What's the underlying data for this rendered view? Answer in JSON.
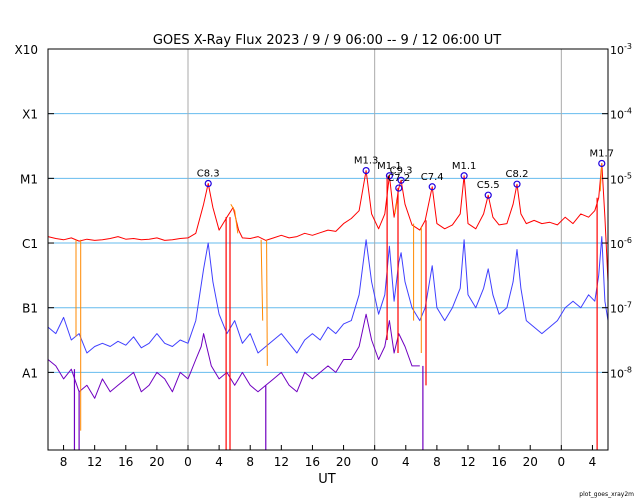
{
  "chart_data": {
    "type": "line",
    "title": "GOES X-Ray Flux   2023 /  9 /  9   06:00 --  9 / 12   06:00   UT",
    "xlabel": "UT",
    "credit": "plot_goes_xray2m",
    "x_ticks": [
      "8",
      "12",
      "16",
      "20",
      "0",
      "4",
      "8",
      "12",
      "16",
      "20",
      "0",
      "4",
      "8",
      "12",
      "16",
      "20",
      "0",
      "4"
    ],
    "x_tick_hours": [
      2,
      6,
      10,
      14,
      18,
      22,
      26,
      30,
      34,
      38,
      42,
      46,
      50,
      54,
      58,
      62,
      66,
      70
    ],
    "x_range_hours": [
      0,
      72
    ],
    "day_boundaries_hours": [
      18,
      42,
      66
    ],
    "left_ticks": [
      "X10",
      "X1",
      "M1",
      "C1",
      "B1",
      "A1"
    ],
    "right_ticks": [
      "-3",
      "-4",
      "-5",
      "-6",
      "-7",
      "-8"
    ],
    "right_tick_base": "10",
    "tick_log_flux": [
      -3,
      -4,
      -5,
      -6,
      -7,
      -8
    ],
    "log_flux_range": [
      -9.2,
      -3
    ],
    "log_scale": true,
    "grid": "horizontal at flare classes, vertical at 0 UT",
    "colors": {
      "long_channel": "#ff0000",
      "short_channel": "#4040ff",
      "short_channel_2": "#7000c0",
      "gap_segments": "#ff8800",
      "grid": "#66bbee",
      "day_line": "#aaaaaa",
      "marker": "#2000e0"
    },
    "flares": [
      {
        "label": "C8.3",
        "hour": 20.6,
        "logflux": -5.08
      },
      {
        "label": "M1.3",
        "hour": 40.9,
        "logflux": -4.88
      },
      {
        "label": "M1.1",
        "hour": 43.9,
        "logflux": -4.96
      },
      {
        "label": "C7.2",
        "hour": 45.1,
        "logflux": -5.15
      },
      {
        "label": "C9.3",
        "hour": 45.4,
        "logflux": -5.03
      },
      {
        "label": "C7.4",
        "hour": 49.4,
        "logflux": -5.13
      },
      {
        "label": "M1.1",
        "hour": 53.5,
        "logflux": -4.96
      },
      {
        "label": "C5.5",
        "hour": 56.6,
        "logflux": -5.26
      },
      {
        "label": "C8.2",
        "hour": 60.3,
        "logflux": -5.09
      },
      {
        "label": "M1.7",
        "hour": 71.2,
        "logflux": -4.77
      }
    ],
    "series": [
      {
        "channel": "long",
        "points": [
          [
            0,
            -5.9
          ],
          [
            1,
            -5.93
          ],
          [
            2,
            -5.95
          ],
          [
            3,
            -5.92
          ],
          [
            4,
            -5.97
          ],
          [
            5,
            -5.94
          ],
          [
            6,
            -5.96
          ],
          [
            7,
            -5.95
          ],
          [
            8,
            -5.93
          ],
          [
            9,
            -5.9
          ],
          [
            10,
            -5.94
          ],
          [
            11,
            -5.93
          ],
          [
            12,
            -5.95
          ],
          [
            13,
            -5.94
          ],
          [
            14,
            -5.92
          ],
          [
            15,
            -5.96
          ],
          [
            16,
            -5.95
          ],
          [
            17,
            -5.93
          ],
          [
            18,
            -5.92
          ],
          [
            19,
            -5.85
          ],
          [
            20,
            -5.4
          ],
          [
            20.6,
            -5.08
          ],
          [
            21.2,
            -5.45
          ],
          [
            22,
            -5.8
          ],
          [
            23,
            -5.6
          ],
          [
            23.8,
            -5.45
          ],
          [
            24.5,
            -5.8
          ],
          [
            25,
            -5.92
          ],
          [
            26,
            -5.93
          ],
          [
            27,
            -5.9
          ],
          [
            28,
            -5.96
          ],
          [
            29,
            -5.92
          ],
          [
            30,
            -5.88
          ],
          [
            31,
            -5.92
          ],
          [
            32,
            -5.9
          ],
          [
            33,
            -5.85
          ],
          [
            34,
            -5.88
          ],
          [
            35,
            -5.84
          ],
          [
            36,
            -5.8
          ],
          [
            37,
            -5.82
          ],
          [
            38,
            -5.7
          ],
          [
            39,
            -5.62
          ],
          [
            40,
            -5.5
          ],
          [
            40.9,
            -4.88
          ],
          [
            41.6,
            -5.55
          ],
          [
            42.5,
            -5.78
          ],
          [
            43.3,
            -5.55
          ],
          [
            43.9,
            -4.96
          ],
          [
            44.5,
            -5.6
          ],
          [
            45.1,
            -5.15
          ],
          [
            45.4,
            -5.03
          ],
          [
            45.9,
            -5.4
          ],
          [
            46.8,
            -5.72
          ],
          [
            47.8,
            -5.8
          ],
          [
            48.5,
            -5.65
          ],
          [
            49.4,
            -5.13
          ],
          [
            50,
            -5.7
          ],
          [
            51,
            -5.78
          ],
          [
            52,
            -5.72
          ],
          [
            53,
            -5.55
          ],
          [
            53.5,
            -4.96
          ],
          [
            54,
            -5.7
          ],
          [
            55,
            -5.78
          ],
          [
            56,
            -5.55
          ],
          [
            56.6,
            -5.26
          ],
          [
            57.2,
            -5.6
          ],
          [
            58,
            -5.72
          ],
          [
            59,
            -5.7
          ],
          [
            59.8,
            -5.4
          ],
          [
            60.3,
            -5.09
          ],
          [
            60.8,
            -5.55
          ],
          [
            61.5,
            -5.7
          ],
          [
            62.5,
            -5.65
          ],
          [
            63.5,
            -5.7
          ],
          [
            64.5,
            -5.68
          ],
          [
            65.5,
            -5.72
          ],
          [
            66.5,
            -5.6
          ],
          [
            67.5,
            -5.7
          ],
          [
            68.5,
            -5.55
          ],
          [
            69.5,
            -5.6
          ],
          [
            70.3,
            -5.5
          ],
          [
            70.8,
            -5.3
          ],
          [
            71.2,
            -4.77
          ],
          [
            71.6,
            -5.6
          ],
          [
            72,
            -6.6
          ]
        ]
      },
      {
        "channel": "short",
        "points": [
          [
            0,
            -7.3
          ],
          [
            1,
            -7.4
          ],
          [
            2,
            -7.15
          ],
          [
            3,
            -7.5
          ],
          [
            4,
            -7.4
          ],
          [
            5,
            -7.7
          ],
          [
            6,
            -7.6
          ],
          [
            7,
            -7.55
          ],
          [
            8,
            -7.6
          ],
          [
            9,
            -7.52
          ],
          [
            10,
            -7.58
          ],
          [
            11,
            -7.45
          ],
          [
            12,
            -7.62
          ],
          [
            13,
            -7.55
          ],
          [
            14,
            -7.4
          ],
          [
            15,
            -7.55
          ],
          [
            16,
            -7.6
          ],
          [
            17,
            -7.5
          ],
          [
            18,
            -7.55
          ],
          [
            19,
            -7.2
          ],
          [
            20,
            -6.4
          ],
          [
            20.6,
            -6.0
          ],
          [
            21.2,
            -6.6
          ],
          [
            22,
            -7.1
          ],
          [
            23,
            -7.4
          ],
          [
            24,
            -7.2
          ],
          [
            25,
            -7.55
          ],
          [
            26,
            -7.4
          ],
          [
            27,
            -7.7
          ],
          [
            28,
            -7.6
          ],
          [
            29,
            -7.5
          ],
          [
            30,
            -7.4
          ],
          [
            31,
            -7.55
          ],
          [
            32,
            -7.7
          ],
          [
            33,
            -7.5
          ],
          [
            34,
            -7.4
          ],
          [
            35,
            -7.5
          ],
          [
            36,
            -7.3
          ],
          [
            37,
            -7.4
          ],
          [
            38,
            -7.25
          ],
          [
            39,
            -7.2
          ],
          [
            40,
            -6.8
          ],
          [
            40.9,
            -5.95
          ],
          [
            41.6,
            -6.6
          ],
          [
            42.5,
            -7.1
          ],
          [
            43.3,
            -6.8
          ],
          [
            43.9,
            -6.05
          ],
          [
            44.5,
            -6.9
          ],
          [
            45.1,
            -6.3
          ],
          [
            45.4,
            -6.15
          ],
          [
            45.9,
            -6.6
          ],
          [
            46.8,
            -7.0
          ],
          [
            47.8,
            -7.2
          ],
          [
            48.5,
            -7.0
          ],
          [
            49.4,
            -6.35
          ],
          [
            50,
            -7.0
          ],
          [
            51,
            -7.2
          ],
          [
            52,
            -7.0
          ],
          [
            53,
            -6.7
          ],
          [
            53.5,
            -5.95
          ],
          [
            54,
            -6.8
          ],
          [
            55,
            -7.0
          ],
          [
            56,
            -6.7
          ],
          [
            56.6,
            -6.4
          ],
          [
            57.2,
            -6.8
          ],
          [
            58,
            -7.1
          ],
          [
            59,
            -7.0
          ],
          [
            59.8,
            -6.6
          ],
          [
            60.3,
            -6.1
          ],
          [
            60.8,
            -6.7
          ],
          [
            61.5,
            -7.2
          ],
          [
            62.5,
            -7.3
          ],
          [
            63.5,
            -7.4
          ],
          [
            64.5,
            -7.3
          ],
          [
            65.5,
            -7.2
          ],
          [
            66.5,
            -7.0
          ],
          [
            67.5,
            -6.9
          ],
          [
            68.5,
            -7.0
          ],
          [
            69.5,
            -6.8
          ],
          [
            70.3,
            -6.9
          ],
          [
            70.8,
            -6.5
          ],
          [
            71.2,
            -5.9
          ],
          [
            71.6,
            -6.9
          ],
          [
            72,
            -7.2
          ]
        ]
      },
      {
        "channel": "short_2",
        "points": [
          [
            0,
            -7.8
          ],
          [
            1,
            -7.9
          ],
          [
            2,
            -8.1
          ],
          [
            3,
            -7.95
          ],
          [
            4,
            -8.3
          ],
          [
            5,
            -8.2
          ],
          [
            6,
            -8.4
          ],
          [
            7,
            -8.1
          ],
          [
            8,
            -8.3
          ],
          [
            9,
            -8.2
          ],
          [
            10,
            -8.1
          ],
          [
            11,
            -8.0
          ],
          [
            12,
            -8.3
          ],
          [
            13,
            -8.2
          ],
          [
            14,
            -8.0
          ],
          [
            15,
            -8.1
          ],
          [
            16,
            -8.3
          ],
          [
            17,
            -8.0
          ],
          [
            18,
            -8.1
          ],
          [
            19,
            -7.8
          ],
          [
            19.7,
            -7.6
          ],
          [
            20,
            -7.4
          ],
          [
            21,
            -7.9
          ],
          [
            22,
            -8.1
          ],
          [
            23,
            -8.0
          ],
          [
            24,
            -8.2
          ],
          [
            25,
            -8.0
          ],
          [
            26,
            -8.2
          ],
          [
            27,
            -8.3
          ],
          [
            28,
            -8.2
          ],
          [
            29,
            -8.1
          ],
          [
            30,
            -8.0
          ],
          [
            31,
            -8.2
          ],
          [
            32,
            -8.3
          ],
          [
            33,
            -8.0
          ],
          [
            34,
            -8.1
          ],
          [
            35,
            -8.0
          ],
          [
            36,
            -7.9
          ],
          [
            37,
            -8.0
          ],
          [
            38,
            -7.8
          ],
          [
            39,
            -7.8
          ],
          [
            40,
            -7.6
          ],
          [
            40.9,
            -7.1
          ],
          [
            41.6,
            -7.5
          ],
          [
            42.5,
            -7.8
          ],
          [
            43.3,
            -7.6
          ],
          [
            43.9,
            -7.2
          ],
          [
            44.5,
            -7.7
          ],
          [
            45.1,
            -7.4
          ],
          [
            45.9,
            -7.6
          ],
          [
            46.8,
            -7.9
          ],
          [
            47.8,
            -7.9
          ]
        ]
      },
      {
        "channel": "gap",
        "segments": [
          [
            [
              3.6,
              -5.95
            ],
            [
              3.6,
              -7.45
            ]
          ],
          [
            [
              4.2,
              -5.95
            ],
            [
              4.2,
              -8.9
            ]
          ],
          [
            [
              23.5,
              -5.4
            ],
            [
              24.0,
              -5.5
            ],
            [
              24.4,
              -5.85
            ]
          ],
          [
            [
              27.4,
              -5.95
            ],
            [
              27.6,
              -7.2
            ]
          ],
          [
            [
              28.1,
              -5.95
            ],
            [
              28.2,
              -7.9
            ]
          ],
          [
            [
              44.6,
              -5.55
            ],
            [
              44.9,
              -5.35
            ]
          ],
          [
            [
              47.0,
              -5.7
            ],
            [
              47.0,
              -7.2
            ]
          ],
          [
            [
              48.0,
              -5.75
            ],
            [
              48.0,
              -7.7
            ]
          ],
          [
            [
              71.0,
              -5.2
            ],
            [
              71.2,
              -4.77
            ]
          ]
        ]
      }
    ],
    "dropouts": [
      {
        "channel": "long",
        "hour": 22.9,
        "to": -9.2
      },
      {
        "channel": "long",
        "hour": 23.4,
        "to": -9.2
      },
      {
        "channel": "long",
        "hour": 43.6,
        "to": -7.5
      },
      {
        "channel": "long",
        "hour": 45.0,
        "to": -7.7
      },
      {
        "channel": "long",
        "hour": 48.6,
        "to": -8.2
      },
      {
        "channel": "long",
        "hour": 70.6,
        "to": -9.2
      },
      {
        "channel": "short_2",
        "hour": 3.4,
        "to": -9.2
      },
      {
        "channel": "short_2",
        "hour": 4.0,
        "to": -9.2
      },
      {
        "channel": "short_2",
        "hour": 28.0,
        "to": -9.2
      },
      {
        "channel": "short_2",
        "hour": 48.2,
        "to": -9.2
      }
    ]
  }
}
